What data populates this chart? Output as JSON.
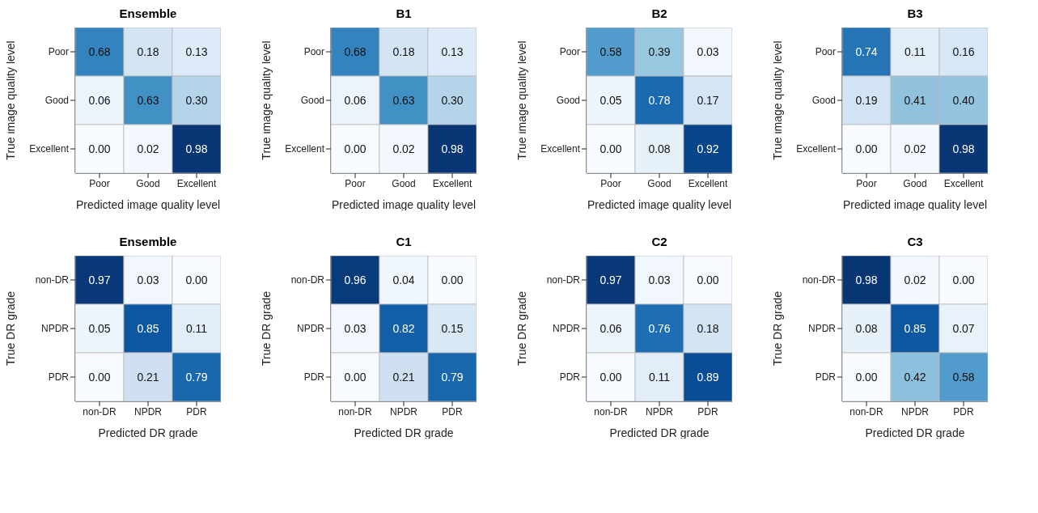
{
  "chart_data": [
    {
      "type": "heatmap",
      "title": "Ensemble",
      "xlabel": "Predicted image quality level",
      "ylabel": "True image quality level",
      "categories": [
        "Poor",
        "Good",
        "Excellent"
      ],
      "y_categories": [
        "Poor",
        "Good",
        "Excellent"
      ],
      "cells": [
        [
          0.68,
          0.18,
          0.13
        ],
        [
          0.06,
          0.63,
          0.3
        ],
        [
          0.0,
          0.02,
          0.98
        ]
      ],
      "cell_labels": [
        [
          "0.68",
          "0.18",
          "0.13"
        ],
        [
          "0.06",
          "0.63",
          "0.30"
        ],
        [
          "0.00",
          "0.02",
          "0.98"
        ]
      ]
    },
    {
      "type": "heatmap",
      "title": "B1",
      "xlabel": "Predicted image quality level",
      "ylabel": "True image quality level",
      "categories": [
        "Poor",
        "Good",
        "Excellent"
      ],
      "y_categories": [
        "Poor",
        "Good",
        "Excellent"
      ],
      "cells": [
        [
          0.68,
          0.18,
          0.13
        ],
        [
          0.06,
          0.63,
          0.3
        ],
        [
          0.0,
          0.02,
          0.98
        ]
      ],
      "cell_labels": [
        [
          "0.68",
          "0.18",
          "0.13"
        ],
        [
          "0.06",
          "0.63",
          "0.30"
        ],
        [
          "0.00",
          "0.02",
          "0.98"
        ]
      ]
    },
    {
      "type": "heatmap",
      "title": "B2",
      "xlabel": "Predicted image quality level",
      "ylabel": "True image quality level",
      "categories": [
        "Poor",
        "Good",
        "Excellent"
      ],
      "y_categories": [
        "Poor",
        "Good",
        "Excellent"
      ],
      "cells": [
        [
          0.58,
          0.39,
          0.03
        ],
        [
          0.05,
          0.78,
          0.17
        ],
        [
          0.0,
          0.08,
          0.92
        ]
      ],
      "cell_labels": [
        [
          "0.58",
          "0.39",
          "0.03"
        ],
        [
          "0.05",
          "0.78",
          "0.17"
        ],
        [
          "0.00",
          "0.08",
          "0.92"
        ]
      ]
    },
    {
      "type": "heatmap",
      "title": "B3",
      "xlabel": "Predicted image quality level",
      "ylabel": "True image quality level",
      "categories": [
        "Poor",
        "Good",
        "Excellent"
      ],
      "y_categories": [
        "Poor",
        "Good",
        "Excellent"
      ],
      "cells": [
        [
          0.74,
          0.11,
          0.16
        ],
        [
          0.19,
          0.41,
          0.4
        ],
        [
          0.0,
          0.02,
          0.98
        ]
      ],
      "cell_labels": [
        [
          "0.74",
          "0.11",
          "0.16"
        ],
        [
          "0.19",
          "0.41",
          "0.40"
        ],
        [
          "0.00",
          "0.02",
          "0.98"
        ]
      ]
    },
    {
      "type": "heatmap",
      "title": "Ensemble",
      "xlabel": "Predicted DR grade",
      "ylabel": "True DR grade",
      "categories": [
        "non-DR",
        "NPDR",
        "PDR"
      ],
      "y_categories": [
        "non-DR",
        "NPDR",
        "PDR"
      ],
      "cells": [
        [
          0.97,
          0.03,
          0.0
        ],
        [
          0.05,
          0.85,
          0.11
        ],
        [
          0.0,
          0.21,
          0.79
        ]
      ],
      "cell_labels": [
        [
          "0.97",
          "0.03",
          "0.00"
        ],
        [
          "0.05",
          "0.85",
          "0.11"
        ],
        [
          "0.00",
          "0.21",
          "0.79"
        ]
      ]
    },
    {
      "type": "heatmap",
      "title": "C1",
      "xlabel": "Predicted DR grade",
      "ylabel": "True DR grade",
      "categories": [
        "non-DR",
        "NPDR",
        "PDR"
      ],
      "y_categories": [
        "non-DR",
        "NPDR",
        "PDR"
      ],
      "cells": [
        [
          0.96,
          0.04,
          0.0
        ],
        [
          0.03,
          0.82,
          0.15
        ],
        [
          0.0,
          0.21,
          0.79
        ]
      ],
      "cell_labels": [
        [
          "0.96",
          "0.04",
          "0.00"
        ],
        [
          "0.03",
          "0.82",
          "0.15"
        ],
        [
          "0.00",
          "0.21",
          "0.79"
        ]
      ]
    },
    {
      "type": "heatmap",
      "title": "C2",
      "xlabel": "Predicted DR grade",
      "ylabel": "True DR grade",
      "categories": [
        "non-DR",
        "NPDR",
        "PDR"
      ],
      "y_categories": [
        "non-DR",
        "NPDR",
        "PDR"
      ],
      "cells": [
        [
          0.97,
          0.03,
          0.0
        ],
        [
          0.06,
          0.76,
          0.18
        ],
        [
          0.0,
          0.11,
          0.89
        ]
      ],
      "cell_labels": [
        [
          "0.97",
          "0.03",
          "0.00"
        ],
        [
          "0.06",
          "0.76",
          "0.18"
        ],
        [
          "0.00",
          "0.11",
          "0.89"
        ]
      ]
    },
    {
      "type": "heatmap",
      "title": "C3",
      "xlabel": "Predicted DR grade",
      "ylabel": "True DR grade",
      "categories": [
        "non-DR",
        "NPDR",
        "PDR"
      ],
      "y_categories": [
        "non-DR",
        "NPDR",
        "PDR"
      ],
      "cells": [
        [
          0.98,
          0.02,
          0.0
        ],
        [
          0.08,
          0.85,
          0.07
        ],
        [
          0.0,
          0.42,
          0.58
        ]
      ],
      "cell_labels": [
        [
          "0.98",
          "0.02",
          "0.00"
        ],
        [
          "0.08",
          "0.85",
          "0.07"
        ],
        [
          "0.00",
          "0.42",
          "0.58"
        ]
      ]
    }
  ]
}
